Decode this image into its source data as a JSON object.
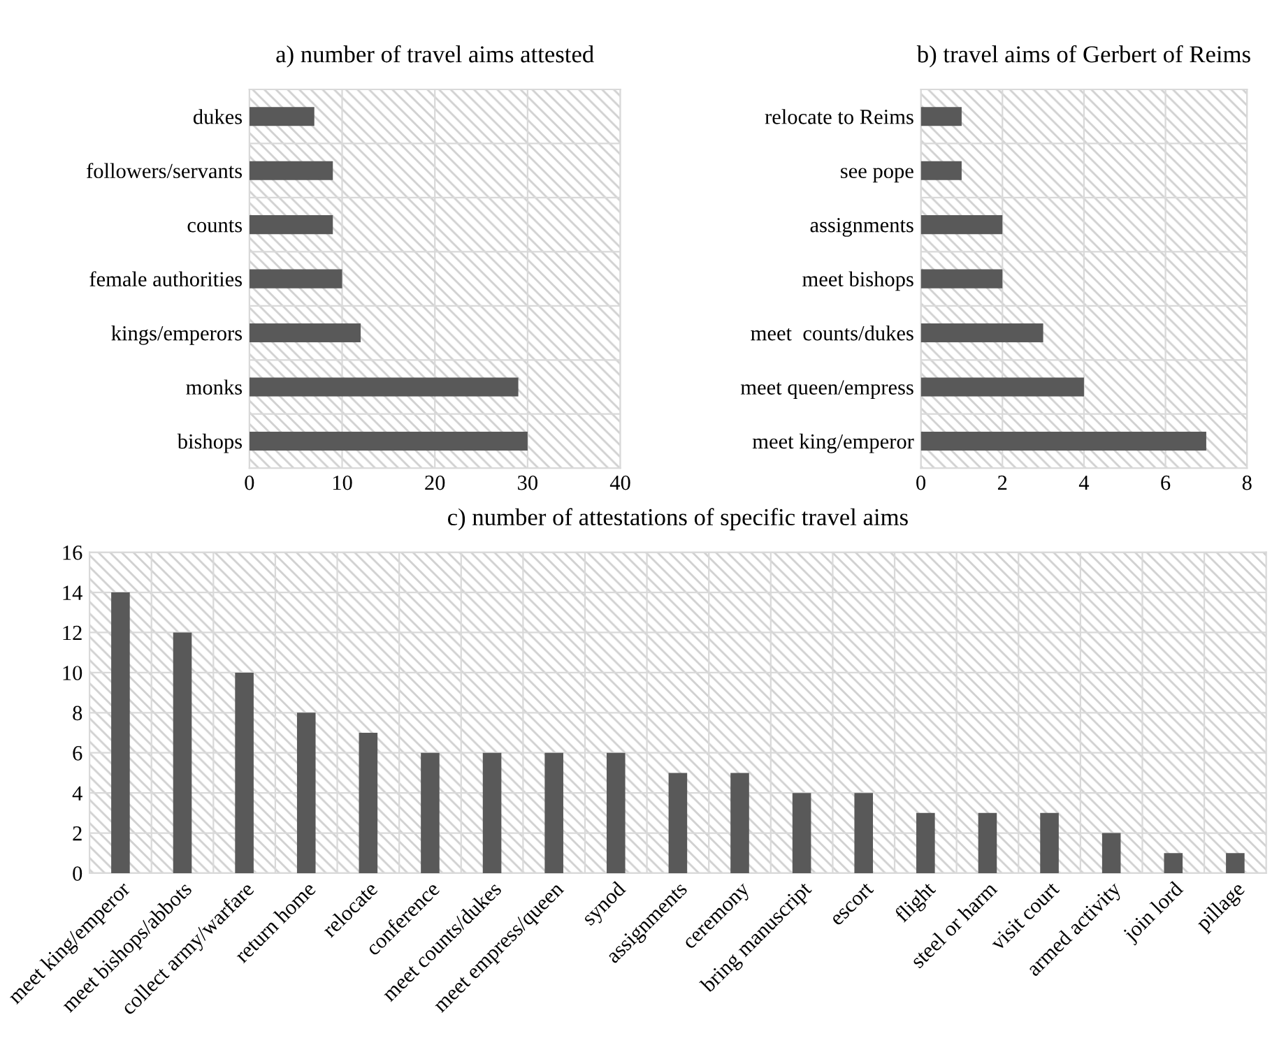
{
  "chart_data": [
    {
      "type": "bar",
      "orientation": "horizontal",
      "title": "a) number of travel aims attested",
      "categories": [
        "dukes",
        "followers/servants",
        "counts",
        "female authorities",
        "kings/emperors",
        "monks",
        "bishops"
      ],
      "values": [
        7,
        9,
        9,
        10,
        12,
        29,
        30
      ],
      "color": "#595959",
      "xlim": [
        0,
        40
      ],
      "xticks": [
        0,
        10,
        20,
        30,
        40
      ],
      "grid": "x"
    },
    {
      "type": "bar",
      "orientation": "horizontal",
      "title": "b) travel aims of Gerbert of Reims",
      "categories": [
        "relocate to Reims",
        "see pope",
        "assignments",
        "meet bishops",
        "meet  counts/dukes",
        "meet queen/empress",
        "meet king/emperor"
      ],
      "values": [
        1,
        1,
        2,
        2,
        3,
        4,
        7
      ],
      "color": "#595959",
      "xlim": [
        0,
        8
      ],
      "xticks": [
        0,
        2,
        4,
        6,
        8
      ],
      "grid": "x"
    },
    {
      "type": "bar",
      "title": "c) number of attestations of specific travel aims",
      "categories": [
        "meet king/emperor",
        "meet bishops/abbots",
        "collect army/warfare",
        "return home",
        "relocate",
        "conference",
        "meet counts/dukes",
        "meet empress/queen",
        "synod",
        "assignments",
        "ceremony",
        "bring manuscript",
        "escort",
        "flight",
        "steel or harm",
        "visit court",
        "armed activity",
        "join lord",
        "pillage"
      ],
      "values": [
        14,
        12,
        10,
        8,
        7,
        6,
        6,
        6,
        6,
        5,
        5,
        4,
        4,
        3,
        3,
        3,
        2,
        1,
        1
      ],
      "color": "#595959",
      "ylim": [
        0,
        16
      ],
      "yticks": [
        0,
        2,
        4,
        6,
        8,
        10,
        12,
        14,
        16
      ],
      "grid": "y"
    }
  ]
}
